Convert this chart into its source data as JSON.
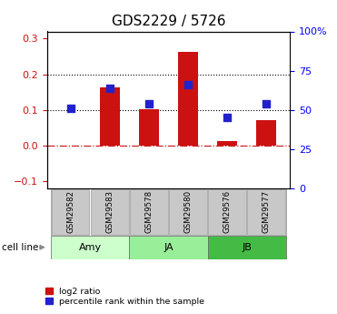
{
  "title": "GDS2229 / 5726",
  "samples": [
    "GSM29582",
    "GSM29583",
    "GSM29578",
    "GSM29580",
    "GSM29576",
    "GSM29577"
  ],
  "log2_ratio": [
    0.0,
    0.163,
    0.102,
    0.262,
    0.013,
    0.072
  ],
  "percentile_rank_pct": [
    51,
    64,
    54,
    66,
    45,
    54
  ],
  "cell_line_groups": [
    {
      "label": "Amy",
      "start": 0,
      "end": 2,
      "color": "#ccffcc"
    },
    {
      "label": "JA",
      "start": 2,
      "end": 4,
      "color": "#99ee99"
    },
    {
      "label": "JB",
      "start": 4,
      "end": 6,
      "color": "#44bb44"
    }
  ],
  "bar_color": "#cc1111",
  "dot_color": "#2222cc",
  "ylim_left": [
    -0.12,
    0.32
  ],
  "ylim_right": [
    0,
    100
  ],
  "yticks_left": [
    -0.1,
    0.0,
    0.1,
    0.2,
    0.3
  ],
  "yticks_right": [
    0,
    25,
    50,
    75,
    100
  ],
  "ytick_labels_right": [
    "0",
    "25",
    "50",
    "75",
    "100%"
  ],
  "dot_size": 28,
  "bar_width": 0.5,
  "zero_line_color": "#cc2222",
  "grid_color": "#000000",
  "legend_log2": "log2 ratio",
  "legend_pct": "percentile rank within the sample",
  "cell_line_label": "cell line",
  "title_fontsize": 11,
  "tick_fontsize": 8,
  "label_fontsize": 8,
  "sample_box_color": "#c8c8c8",
  "sample_box_edge": "#888888"
}
